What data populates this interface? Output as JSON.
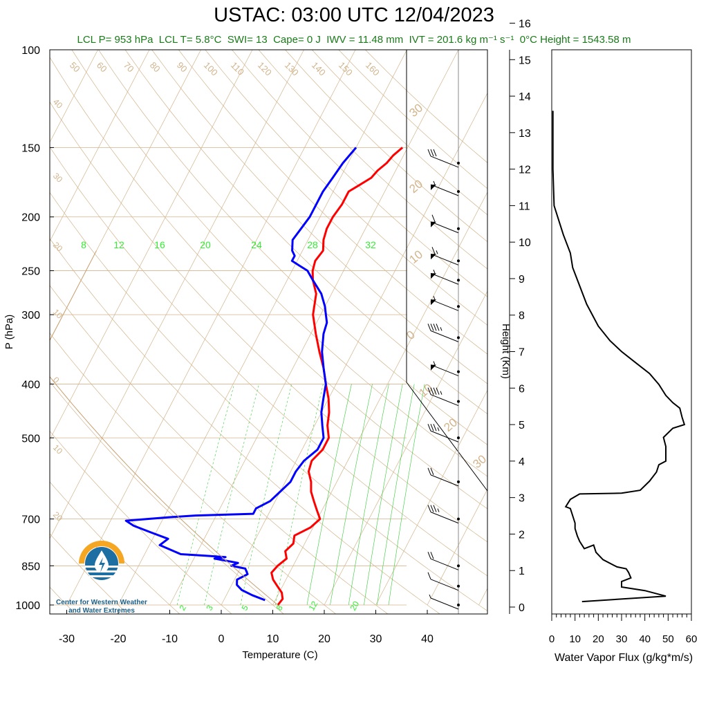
{
  "title": "USTAC: 03:00 UTC 12/04/2023",
  "subtitle": {
    "lcl_p": "LCL P= 953 hPa",
    "lcl_t": "LCL T= 5.8°C",
    "swi": "SWI= 13",
    "cape": "Cape= 0 J",
    "iwv": "IWV = 11.48 mm",
    "ivt": "IVT = 201.6 kg m⁻¹ s⁻¹",
    "zero_height": "0°C Height = 1543.58 m"
  },
  "logo": {
    "line1": "Center for Western Weather",
    "line2": "and Water Extremes"
  },
  "colors": {
    "temperature": "#ff0000",
    "dewpoint": "#0000ff",
    "isotherm_adiabat": "#d2b48c",
    "mixing_ratio": "#33cc33",
    "subtitle": "#1a7a1a",
    "flux": "#000000"
  },
  "chart_data": [
    {
      "type": "line",
      "name": "skew-t",
      "xlabel": "Temperature (C)",
      "ylabel": "P (hPa)",
      "x_ticks": [
        -30,
        -20,
        -10,
        0,
        10,
        20,
        30,
        40
      ],
      "y_ticks": [
        100,
        150,
        200,
        250,
        300,
        400,
        500,
        700,
        850,
        1000
      ],
      "isotherm_labels": [
        50,
        60,
        70,
        80,
        90,
        100,
        110,
        120,
        130,
        140,
        150,
        160
      ],
      "left_isotherm_labels": [
        "40",
        "30",
        "20",
        "10",
        "0",
        "10",
        "20"
      ],
      "right_isotherm_labels": [
        "30",
        "20",
        "10",
        "0",
        "10",
        "20",
        "30"
      ],
      "mixing_ratio_top_labels": [
        8,
        12,
        16,
        20,
        24,
        28,
        32
      ],
      "mixing_ratio_bottom_labels": [
        2,
        3,
        5,
        8,
        12,
        20
      ],
      "series": [
        {
          "key": "temperature",
          "points": [
            [
              1000,
              11
            ],
            [
              975,
              11.3
            ],
            [
              950,
              10.5
            ],
            [
              925,
              9
            ],
            [
              900,
              7.5
            ],
            [
              875,
              6.5
            ],
            [
              850,
              7
            ],
            [
              825,
              8
            ],
            [
              800,
              7
            ],
            [
              775,
              7.8
            ],
            [
              750,
              7.2
            ],
            [
              725,
              9.5
            ],
            [
              700,
              10.5
            ],
            [
              675,
              9
            ],
            [
              650,
              7.5
            ],
            [
              625,
              6
            ],
            [
              600,
              5
            ],
            [
              575,
              3.5
            ],
            [
              550,
              3
            ],
            [
              525,
              4
            ],
            [
              500,
              4
            ],
            [
              475,
              2.5
            ],
            [
              450,
              1.5
            ],
            [
              425,
              0
            ],
            [
              400,
              -2
            ],
            [
              375,
              -4
            ],
            [
              350,
              -6.5
            ],
            [
              325,
              -9
            ],
            [
              300,
              -11.5
            ],
            [
              275,
              -13
            ],
            [
              260,
              -15
            ],
            [
              250,
              -16
            ],
            [
              240,
              -16.5
            ],
            [
              230,
              -16
            ],
            [
              220,
              -17
            ],
            [
              210,
              -17.5
            ],
            [
              200,
              -17.5
            ],
            [
              190,
              -17
            ],
            [
              180,
              -17
            ],
            [
              175,
              -15.5
            ],
            [
              170,
              -14
            ],
            [
              165,
              -13.5
            ],
            [
              160,
              -12.5
            ],
            [
              155,
              -12
            ],
            [
              150,
              -11
            ]
          ]
        },
        {
          "key": "dewpoint",
          "points": [
            [
              980,
              8
            ],
            [
              960,
              5
            ],
            [
              940,
              2.5
            ],
            [
              920,
              1
            ],
            [
              900,
              0.5
            ],
            [
              880,
              2
            ],
            [
              860,
              1
            ],
            [
              850,
              -2
            ],
            [
              840,
              -1
            ],
            [
              825,
              -6
            ],
            [
              820,
              -4
            ],
            [
              815,
              -8
            ],
            [
              810,
              -13
            ],
            [
              780,
              -18
            ],
            [
              760,
              -17
            ],
            [
              740,
              -21
            ],
            [
              720,
              -25
            ],
            [
              705,
              -27
            ],
            [
              695,
              -19
            ],
            [
              690,
              -14
            ],
            [
              685,
              -3
            ],
            [
              670,
              -3
            ],
            [
              650,
              -1
            ],
            [
              625,
              0
            ],
            [
              600,
              1
            ],
            [
              575,
              1
            ],
            [
              550,
              1.5
            ],
            [
              525,
              3
            ],
            [
              500,
              3
            ],
            [
              475,
              1.5
            ],
            [
              450,
              0
            ],
            [
              425,
              -1
            ],
            [
              400,
              -2
            ],
            [
              375,
              -4
            ],
            [
              350,
              -6
            ],
            [
              325,
              -7.5
            ],
            [
              310,
              -8
            ],
            [
              300,
              -9
            ],
            [
              290,
              -10
            ],
            [
              275,
              -12
            ],
            [
              260,
              -15
            ],
            [
              250,
              -17
            ],
            [
              245,
              -19
            ],
            [
              240,
              -21
            ],
            [
              235,
              -21
            ],
            [
              230,
              -22
            ],
            [
              220,
              -23
            ],
            [
              210,
              -22.5
            ],
            [
              200,
              -22
            ],
            [
              190,
              -22
            ],
            [
              180,
              -22
            ],
            [
              170,
              -21.5
            ],
            [
              160,
              -21
            ],
            [
              150,
              -20
            ]
          ]
        }
      ],
      "wind_barbs": [
        {
          "p": 1000,
          "knots": 5
        },
        {
          "p": 925,
          "knots": 10
        },
        {
          "p": 850,
          "knots": 20
        },
        {
          "p": 700,
          "knots": 35
        },
        {
          "p": 600,
          "knots": 20
        },
        {
          "p": 500,
          "knots": 35
        },
        {
          "p": 430,
          "knots": 45
        },
        {
          "p": 380,
          "knots": 55
        },
        {
          "p": 330,
          "knots": 45
        },
        {
          "p": 290,
          "knots": 55
        },
        {
          "p": 260,
          "knots": 55
        },
        {
          "p": 240,
          "knots": 65
        },
        {
          "p": 210,
          "knots": 60
        },
        {
          "p": 180,
          "knots": 55
        },
        {
          "p": 160,
          "knots": 30
        }
      ]
    },
    {
      "type": "line",
      "name": "water-vapor-flux",
      "xlabel": "Water Vapor Flux (g/kg*m/s)",
      "ylabel": "Height (Km)",
      "xlim": [
        0,
        60
      ],
      "ylim": [
        0,
        16
      ],
      "x_ticks": [
        0,
        10,
        20,
        30,
        40,
        50,
        60
      ],
      "y_ticks": [
        0,
        1,
        2,
        3,
        4,
        5,
        6,
        7,
        8,
        9,
        10,
        11,
        12,
        13,
        14,
        15,
        16
      ],
      "points": [
        [
          13,
          0.15
        ],
        [
          49,
          0.3
        ],
        [
          40,
          0.45
        ],
        [
          30,
          0.55
        ],
        [
          30,
          0.7
        ],
        [
          34,
          0.8
        ],
        [
          33,
          0.95
        ],
        [
          32,
          1.05
        ],
        [
          28,
          1.1
        ],
        [
          22,
          1.3
        ],
        [
          19,
          1.5
        ],
        [
          18,
          1.7
        ],
        [
          14,
          1.6
        ],
        [
          12,
          1.8
        ],
        [
          11,
          1.95
        ],
        [
          10,
          2.15
        ],
        [
          10,
          2.3
        ],
        [
          9,
          2.5
        ],
        [
          8,
          2.7
        ],
        [
          6,
          2.75
        ],
        [
          8,
          2.95
        ],
        [
          12,
          3.1
        ],
        [
          30,
          3.12
        ],
        [
          38,
          3.2
        ],
        [
          42,
          3.45
        ],
        [
          45,
          3.7
        ],
        [
          46,
          3.9
        ],
        [
          49,
          4.0
        ],
        [
          49,
          4.2
        ],
        [
          49,
          4.4
        ],
        [
          48,
          4.65
        ],
        [
          52,
          4.9
        ],
        [
          57,
          5.0
        ],
        [
          56,
          5.2
        ],
        [
          55,
          5.45
        ],
        [
          52,
          5.6
        ],
        [
          49,
          5.8
        ],
        [
          46,
          6.1
        ],
        [
          42,
          6.4
        ],
        [
          36,
          6.7
        ],
        [
          30,
          7.0
        ],
        [
          25,
          7.3
        ],
        [
          20,
          7.7
        ],
        [
          15,
          8.3
        ],
        [
          12,
          8.8
        ],
        [
          9,
          9.3
        ],
        [
          8,
          9.7
        ],
        [
          5,
          10.2
        ],
        [
          1,
          11
        ],
        [
          0.5,
          12
        ],
        [
          0.5,
          13.6
        ]
      ]
    }
  ]
}
